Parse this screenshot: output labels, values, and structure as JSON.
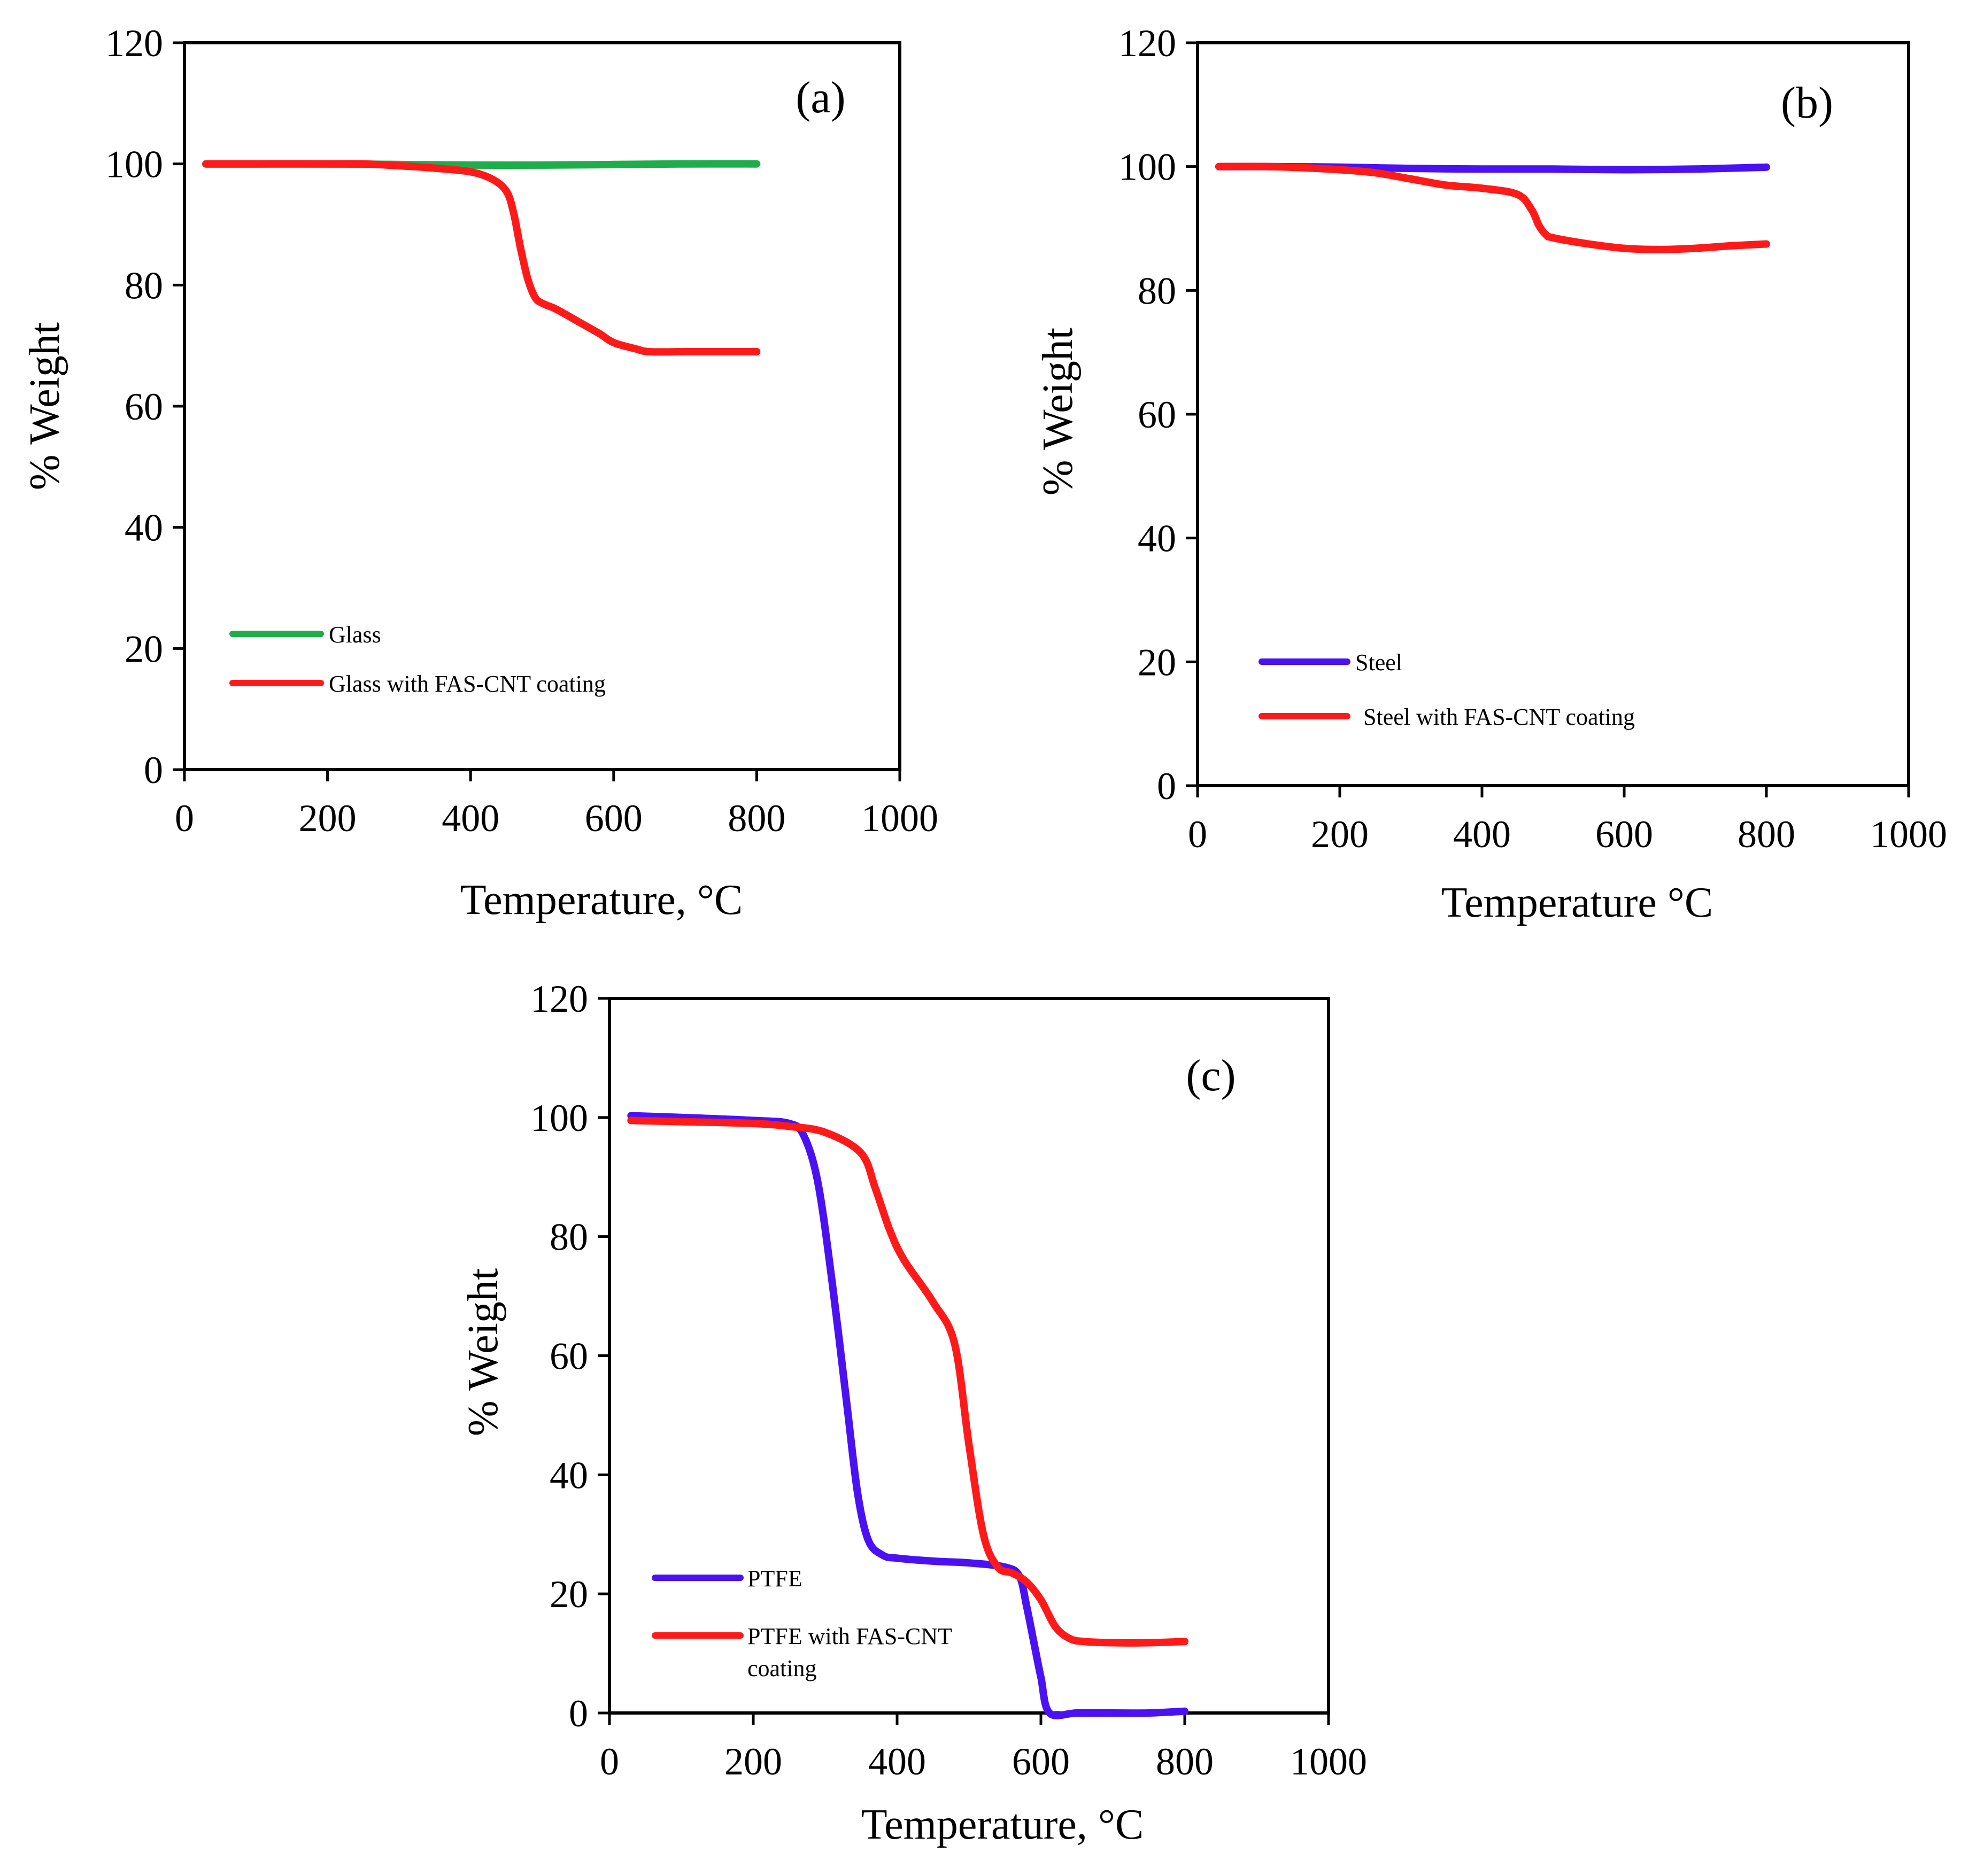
{
  "chart_data": [
    {
      "id": "a",
      "type": "line",
      "panel_label": "(a)",
      "xlabel": "Temperature, °C",
      "ylabel": "% Weight",
      "xlim": [
        0,
        1000
      ],
      "ylim": [
        0,
        120
      ],
      "xticks": [
        0,
        200,
        400,
        600,
        800,
        1000
      ],
      "yticks": [
        0,
        20,
        40,
        60,
        80,
        100,
        120
      ],
      "series": [
        {
          "name": "Glass",
          "color": "#1fad4a",
          "x": [
            30,
            100,
            200,
            300,
            400,
            500,
            600,
            700,
            800
          ],
          "y": [
            100,
            100,
            100,
            99.9,
            99.8,
            99.8,
            99.9,
            100,
            100
          ]
        },
        {
          "name": "Glass with FAS-CNT coating",
          "color": "#ff1a1a",
          "x": [
            30,
            100,
            200,
            250,
            300,
            350,
            400,
            430,
            450,
            460,
            470,
            480,
            490,
            500,
            520,
            550,
            580,
            600,
            630,
            650,
            700,
            750,
            800
          ],
          "y": [
            100,
            100,
            100,
            100,
            99.7,
            99.3,
            98.7,
            97.5,
            95.5,
            92,
            86,
            81,
            78,
            77,
            76,
            74,
            72,
            70.5,
            69.5,
            69,
            69,
            69,
            69
          ]
        }
      ]
    },
    {
      "id": "b",
      "type": "line",
      "panel_label": "(b)",
      "xlabel": "Temperature °C",
      "ylabel": "% Weight",
      "xlim": [
        0,
        1000
      ],
      "ylim": [
        0,
        120
      ],
      "xticks": [
        0,
        200,
        400,
        600,
        800,
        1000
      ],
      "yticks": [
        0,
        20,
        40,
        60,
        80,
        100,
        120
      ],
      "series": [
        {
          "name": "Steel",
          "color": "#4a12f2",
          "x": [
            30,
            100,
            200,
            300,
            400,
            500,
            600,
            700,
            800
          ],
          "y": [
            100,
            100,
            99.9,
            99.7,
            99.6,
            99.6,
            99.5,
            99.6,
            99.9
          ]
        },
        {
          "name": "Steel with FAS-CNT coating",
          "color": "#ff1a1a",
          "x": [
            30,
            100,
            150,
            200,
            250,
            300,
            350,
            400,
            450,
            470,
            480,
            490,
            500,
            550,
            600,
            650,
            700,
            750,
            800
          ],
          "y": [
            100,
            100,
            99.8,
            99.5,
            99,
            98,
            97,
            96.5,
            95.5,
            93,
            90.5,
            89,
            88.5,
            87.5,
            86.8,
            86.6,
            86.8,
            87.2,
            87.5
          ]
        }
      ]
    },
    {
      "id": "c",
      "type": "line",
      "panel_label": "(c)",
      "xlabel": "Temperature, °C",
      "ylabel": "% Weight",
      "xlim": [
        0,
        1000
      ],
      "ylim": [
        0,
        120
      ],
      "xticks": [
        0,
        200,
        400,
        600,
        800,
        1000
      ],
      "yticks": [
        0,
        20,
        40,
        60,
        80,
        100,
        120
      ],
      "series": [
        {
          "name": "PTFE",
          "color": "#4a12f2",
          "x": [
            30,
            100,
            200,
            250,
            270,
            290,
            310,
            330,
            345,
            360,
            380,
            400,
            450,
            500,
            550,
            570,
            580,
            590,
            600,
            612,
            650,
            700,
            750,
            800
          ],
          "y": [
            100.3,
            100,
            99.5,
            99,
            97,
            89,
            72,
            52,
            37,
            29,
            26.5,
            26,
            25.5,
            25.2,
            24.5,
            23,
            18,
            12,
            6,
            0,
            0,
            0,
            0,
            0.3
          ]
        },
        {
          "name": "PTFE with FAS-CNT coating",
          "color": "#ff1a1a",
          "x": [
            30,
            100,
            200,
            250,
            300,
            350,
            370,
            390,
            410,
            450,
            480,
            500,
            520,
            540,
            560,
            580,
            600,
            620,
            640,
            660,
            700,
            750,
            800
          ],
          "y": [
            99.5,
            99.3,
            99,
            98.5,
            97.5,
            94,
            88,
            81,
            76,
            69,
            62,
            45,
            30,
            24.5,
            23.5,
            22,
            19,
            14.5,
            12.5,
            12,
            11.8,
            11.8,
            12
          ]
        }
      ]
    }
  ],
  "legends": {
    "a": [
      "Glass",
      "Glass with FAS-CNT coating"
    ],
    "b": [
      "Steel",
      "Steel with FAS-CNT coating"
    ],
    "c": [
      "PTFE",
      "PTFE with FAS-CNT",
      "coating"
    ]
  }
}
